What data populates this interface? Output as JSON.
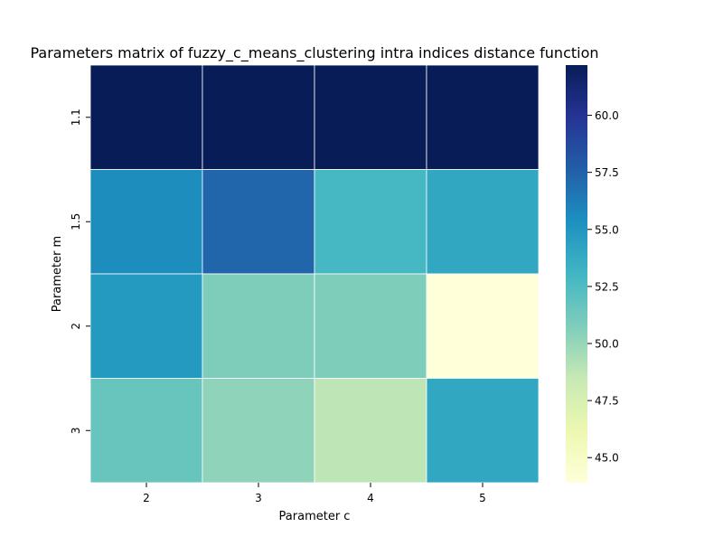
{
  "chart_data": {
    "type": "heatmap",
    "title": "Parameters matrix of fuzzy_c_means_clustering intra indices distance function",
    "xlabel": "Parameter c",
    "ylabel": "Parameter m",
    "x_categories": [
      "2",
      "3",
      "4",
      "5"
    ],
    "y_categories": [
      "1.1",
      "1.5",
      "2",
      "3"
    ],
    "values": [
      [
        62.2,
        62.2,
        62.2,
        62.2
      ],
      [
        55.5,
        57.3,
        52.9,
        54.0
      ],
      [
        54.8,
        50.8,
        50.8,
        43.9
      ],
      [
        51.6,
        50.3,
        48.8,
        54.0
      ]
    ],
    "colorbar": {
      "vmin": 43.9,
      "vmax": 62.2,
      "ticks": [
        45.0,
        47.5,
        50.0,
        52.5,
        55.0,
        57.5,
        60.0
      ],
      "tick_labels": [
        "45.0",
        "47.5",
        "50.0",
        "52.5",
        "55.0",
        "57.5",
        "60.0"
      ]
    },
    "colormap": "YlGnBu",
    "grid": false
  }
}
